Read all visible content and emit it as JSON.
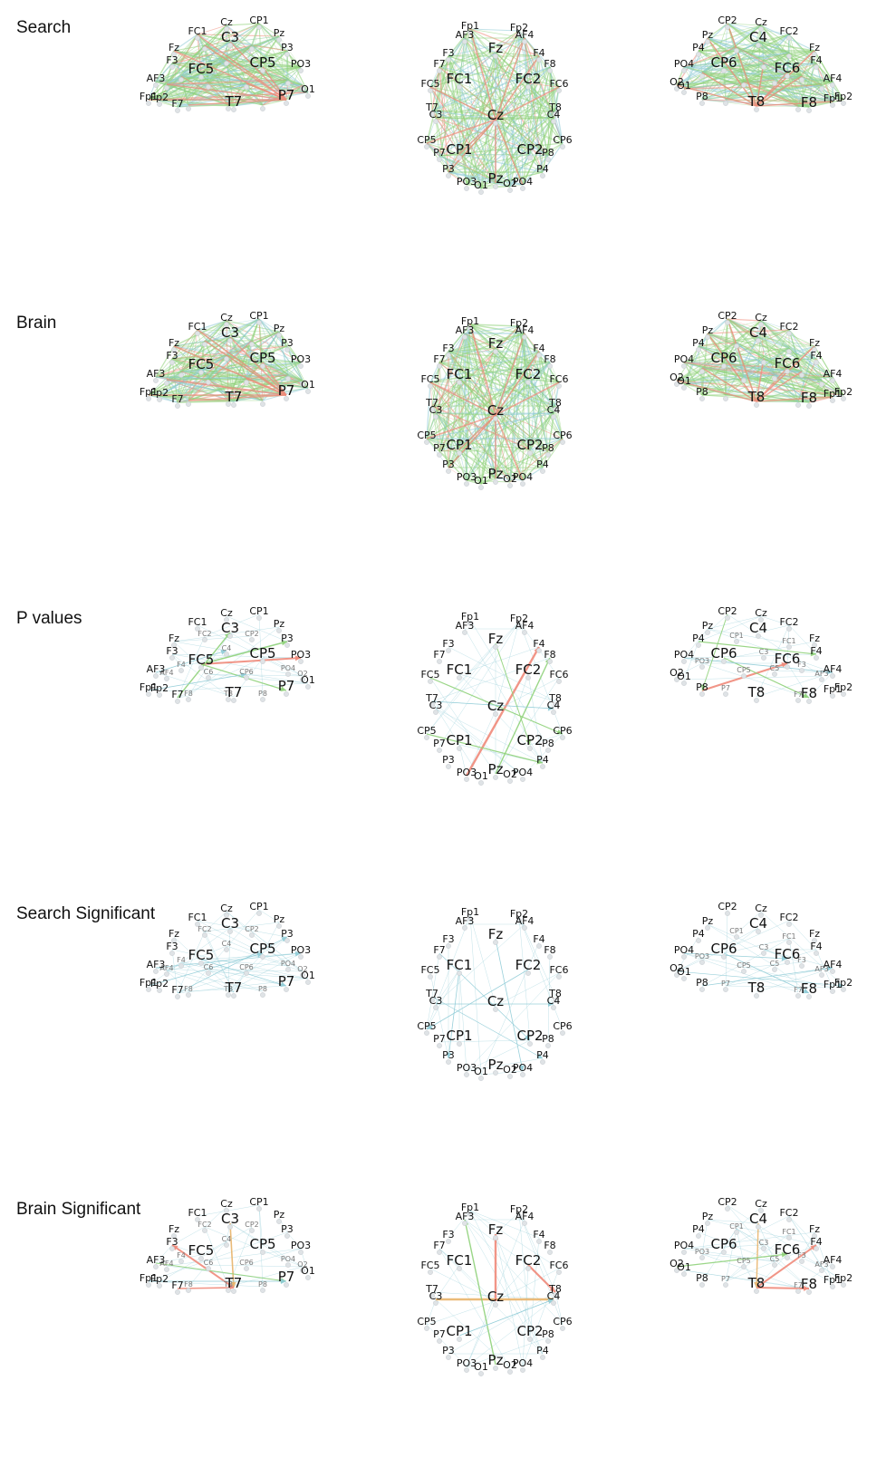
{
  "colors": {
    "edge_green": "#8fd17a",
    "edge_blue": "#8ecbd6",
    "edge_red": "#f08a7a",
    "edge_orange": "#e9b46a",
    "node": "#dfe3e6"
  },
  "rows": [
    {
      "label": "Search",
      "style": "dense"
    },
    {
      "label": "Brain",
      "style": "dense"
    },
    {
      "label": "P values",
      "style": "sparse"
    },
    {
      "label": "Search Significant",
      "style": "sparse-blue"
    },
    {
      "label": "Brain Significant",
      "style": "sparse"
    }
  ],
  "views": {
    "left": {
      "big": [
        "C3",
        "CP5",
        "FC5",
        "T7",
        "P7"
      ],
      "small": [
        "FC1",
        "Cz",
        "CP1",
        "Pz",
        "P3",
        "PO3",
        "O1",
        "Fz",
        "F3",
        "AF3",
        "Fp1",
        "F7",
        "Fp2"
      ],
      "faint": [
        "FC2",
        "CP2",
        "F4",
        "AF4",
        "C4",
        "C6",
        "CP6",
        "PO4",
        "O2",
        "F8",
        "T8",
        "P8"
      ]
    },
    "top": {
      "big": [
        "Fz",
        "FC1",
        "FC2",
        "Cz",
        "CP1",
        "CP2",
        "Pz"
      ],
      "small": [
        "Fp1",
        "Fp2",
        "AF3",
        "AF4",
        "F3",
        "F4",
        "F7",
        "F8",
        "FC5",
        "FC6",
        "C3",
        "C4",
        "T7",
        "T8",
        "CP5",
        "CP6",
        "P3",
        "P4",
        "P7",
        "P8",
        "PO3",
        "PO4",
        "O1",
        "O2"
      ],
      "faint": []
    },
    "right": {
      "big": [
        "C4",
        "CP6",
        "FC6",
        "T8",
        "F8"
      ],
      "small": [
        "CP2",
        "Cz",
        "FC2",
        "Pz",
        "P4",
        "Fz",
        "F4",
        "PO4",
        "AF4",
        "O2",
        "O1",
        "P8",
        "Fp2",
        "Fp1"
      ],
      "faint": [
        "CP1",
        "FC1",
        "C3",
        "C5",
        "CP5",
        "PO3",
        "P7",
        "F7",
        "F3",
        "AF3"
      ]
    }
  }
}
